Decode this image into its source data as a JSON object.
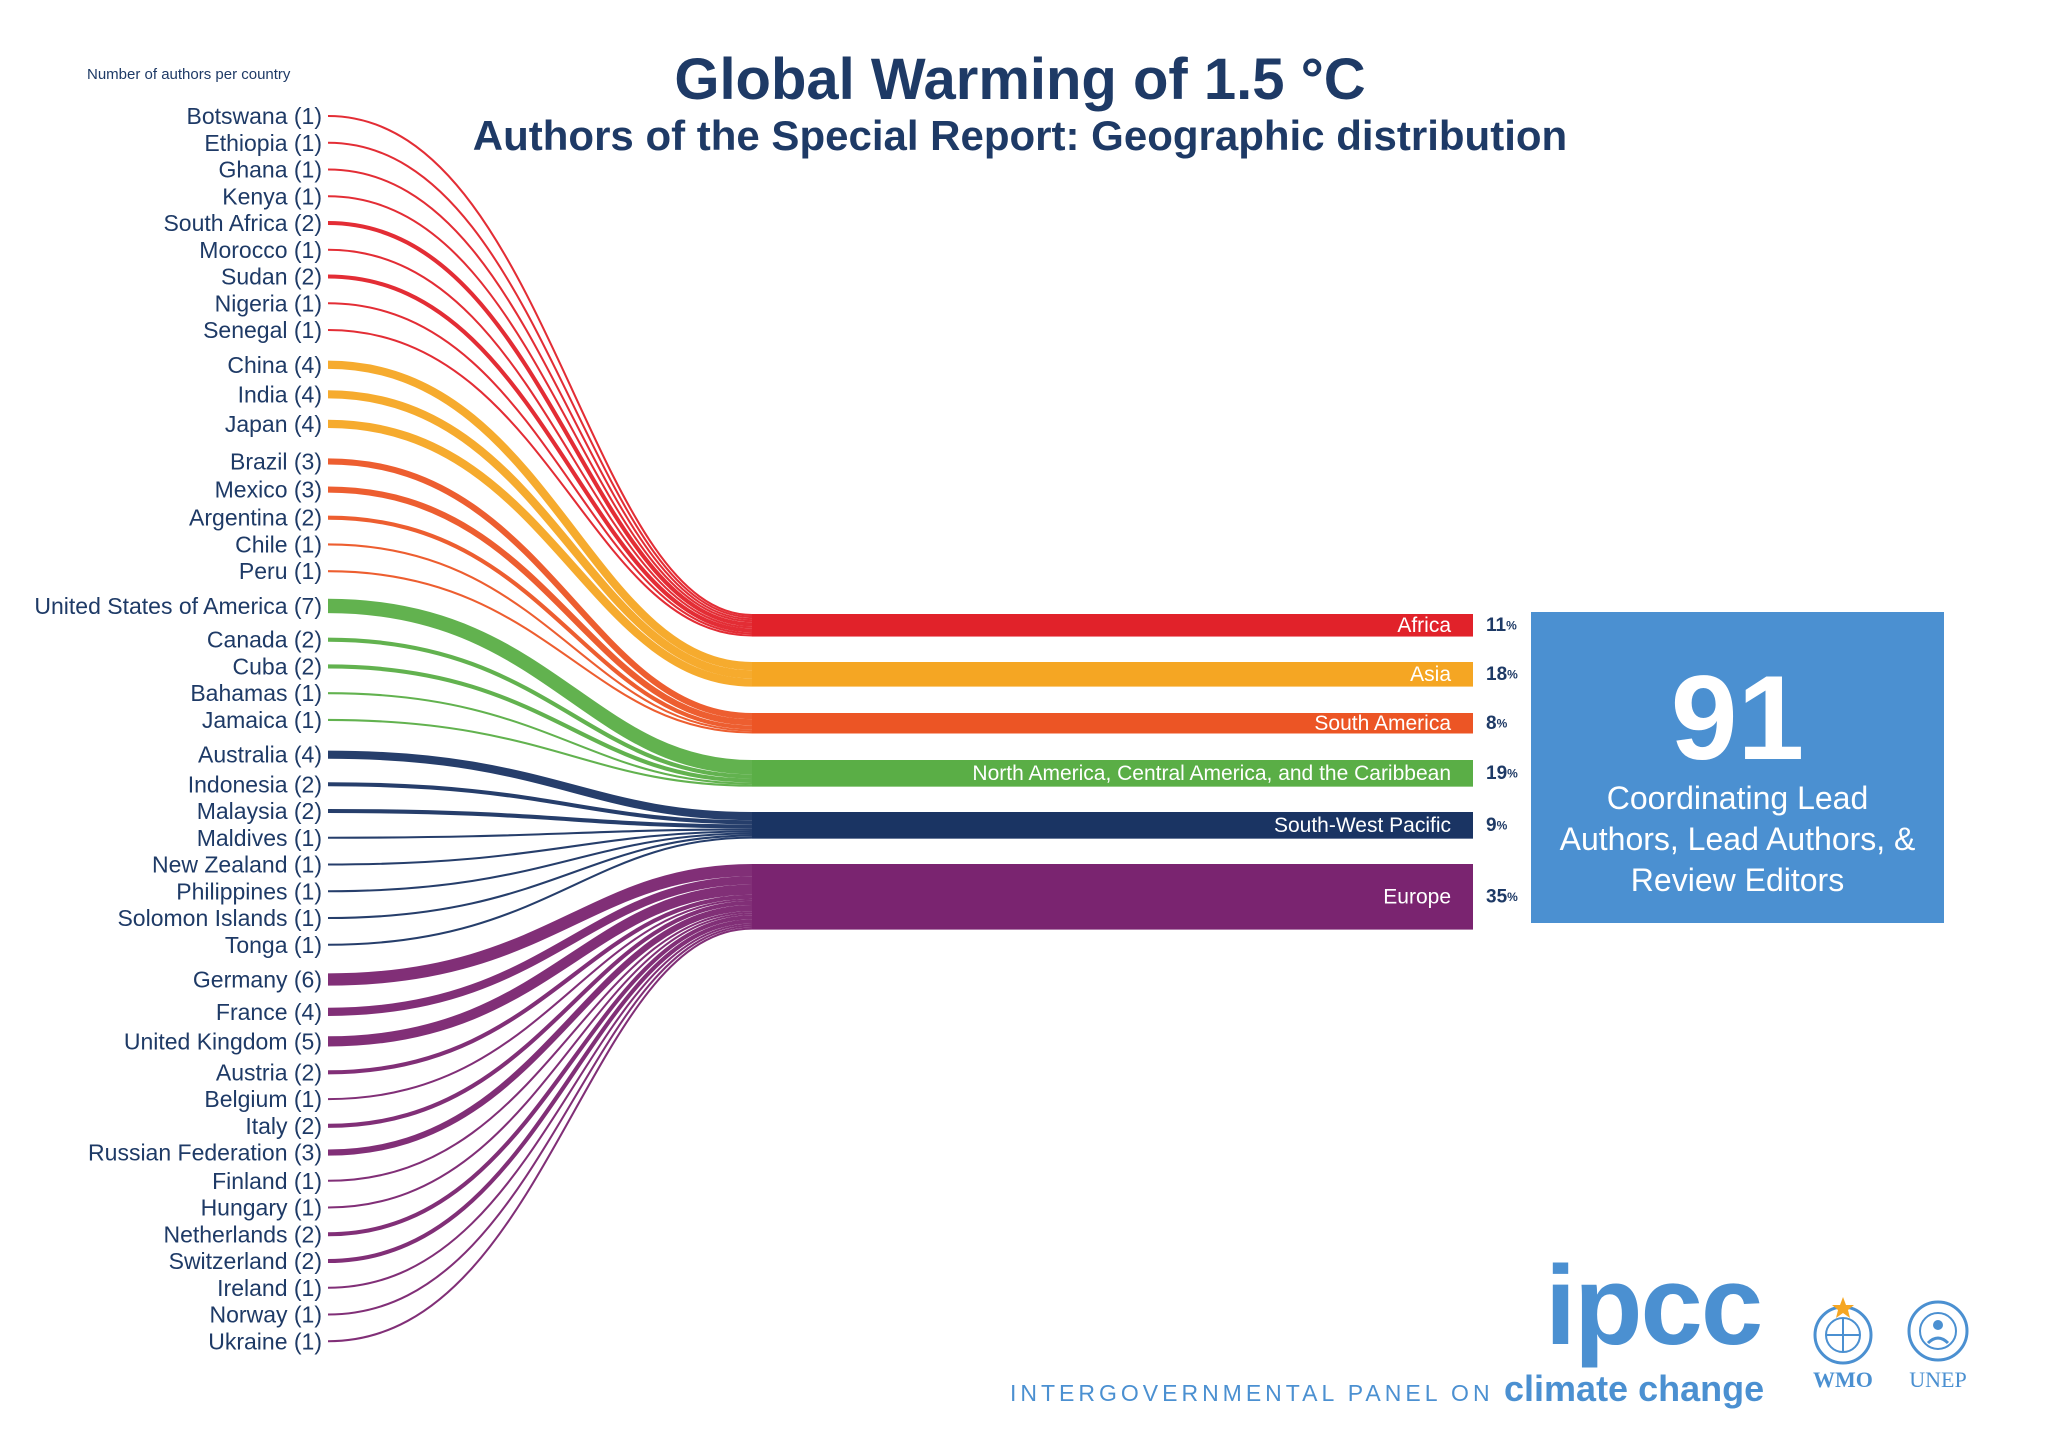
{
  "title": "Global Warming of 1.5 °C",
  "subtitle": "Authors of the Special Report: Geographic distribution",
  "axis_note": "Number of authors per country",
  "total": {
    "number": "91",
    "caption": "Coordinating Lead Authors, Lead Authors, & Review Editors"
  },
  "colors": {
    "Africa": "#e1222a",
    "Asia": "#f5a623",
    "South America": "#ec5525",
    "North America, Central America, and the Caribbean": "#5aae46",
    "South-West Pacific": "#1a3463",
    "Europe": "#7a2470",
    "text": "#1e3a66",
    "accent": "#4b90d1"
  },
  "footer": {
    "logo": "ipcc",
    "tagline_1": "INTERGOVERNMENTAL PANEL ON",
    "tagline_2": "climate change",
    "org_1": "WMO",
    "org_2": "UNEP"
  },
  "chart_data": {
    "type": "sankey",
    "title": "Global Warming of 1.5 °C",
    "subtitle": "Authors of the Special Report: Geographic distribution",
    "source_label": "Number of authors per country",
    "regions": [
      {
        "name": "Africa",
        "percent": 11,
        "label": "11",
        "unit": "%"
      },
      {
        "name": "Asia",
        "percent": 18,
        "label": "18",
        "unit": "%"
      },
      {
        "name": "South America",
        "percent": 8,
        "label": "8",
        "unit": "%"
      },
      {
        "name": "North America, Central America, and the Caribbean",
        "percent": 19,
        "label": "19",
        "unit": "%"
      },
      {
        "name": "South-West Pacific",
        "percent": 9,
        "label": "9",
        "unit": "%"
      },
      {
        "name": "Europe",
        "percent": 35,
        "label": "35",
        "unit": "%"
      }
    ],
    "countries": [
      {
        "name": "Botswana",
        "count": 1,
        "region": "Africa",
        "label": "Botswana (1)"
      },
      {
        "name": "Ethiopia",
        "count": 1,
        "region": "Africa",
        "label": "Ethiopia (1)"
      },
      {
        "name": "Ghana",
        "count": 1,
        "region": "Africa",
        "label": "Ghana (1)"
      },
      {
        "name": "Kenya",
        "count": 1,
        "region": "Africa",
        "label": "Kenya (1)"
      },
      {
        "name": "South Africa",
        "count": 2,
        "region": "Africa",
        "label": "South Africa (2)"
      },
      {
        "name": "Morocco",
        "count": 1,
        "region": "Africa",
        "label": "Morocco (1)"
      },
      {
        "name": "Sudan",
        "count": 2,
        "region": "Africa",
        "label": "Sudan (2)"
      },
      {
        "name": "Nigeria",
        "count": 1,
        "region": "Africa",
        "label": "Nigeria (1)"
      },
      {
        "name": "Senegal",
        "count": 1,
        "region": "Africa",
        "label": "Senegal (1)"
      },
      {
        "name": "China",
        "count": 4,
        "region": "Asia",
        "label": "China (4)"
      },
      {
        "name": "India",
        "count": 4,
        "region": "Asia",
        "label": "India (4)"
      },
      {
        "name": "Japan",
        "count": 4,
        "region": "Asia",
        "label": "Japan (4)"
      },
      {
        "name": "Brazil",
        "count": 3,
        "region": "South America",
        "label": "Brazil (3)"
      },
      {
        "name": "Mexico",
        "count": 3,
        "region": "South America",
        "label": "Mexico (3)"
      },
      {
        "name": "Argentina",
        "count": 2,
        "region": "South America",
        "label": "Argentina (2)"
      },
      {
        "name": "Chile",
        "count": 1,
        "region": "South America",
        "label": "Chile (1)"
      },
      {
        "name": "Peru",
        "count": 1,
        "region": "South America",
        "label": "Peru (1)"
      },
      {
        "name": "United States of America",
        "count": 7,
        "region": "North America, Central America, and the Caribbean",
        "label": "United States of America (7)"
      },
      {
        "name": "Canada",
        "count": 2,
        "region": "North America, Central America, and the Caribbean",
        "label": "Canada (2)"
      },
      {
        "name": "Cuba",
        "count": 2,
        "region": "North America, Central America, and the Caribbean",
        "label": "Cuba (2)"
      },
      {
        "name": "Bahamas",
        "count": 1,
        "region": "North America, Central America, and the Caribbean",
        "label": "Bahamas (1)"
      },
      {
        "name": "Jamaica",
        "count": 1,
        "region": "North America, Central America, and the Caribbean",
        "label": "Jamaica (1)"
      },
      {
        "name": "Australia",
        "count": 4,
        "region": "South-West Pacific",
        "label": "Australia (4)"
      },
      {
        "name": "Indonesia",
        "count": 2,
        "region": "South-West Pacific",
        "label": "Indonesia (2)"
      },
      {
        "name": "Malaysia",
        "count": 2,
        "region": "South-West Pacific",
        "label": "Malaysia (2)"
      },
      {
        "name": "Maldives",
        "count": 1,
        "region": "South-West Pacific",
        "label": "Maldives (1)"
      },
      {
        "name": "New Zealand",
        "count": 1,
        "region": "South-West Pacific",
        "label": "New Zealand (1)"
      },
      {
        "name": "Philippines",
        "count": 1,
        "region": "South-West Pacific",
        "label": "Philippines (1)"
      },
      {
        "name": "Solomon Islands",
        "count": 1,
        "region": "South-West Pacific",
        "label": "Solomon Islands (1)"
      },
      {
        "name": "Tonga",
        "count": 1,
        "region": "South-West Pacific",
        "label": "Tonga (1)"
      },
      {
        "name": "Germany",
        "count": 6,
        "region": "Europe",
        "label": "Germany (6)"
      },
      {
        "name": "France",
        "count": 4,
        "region": "Europe",
        "label": "France (4)"
      },
      {
        "name": "United Kingdom",
        "count": 5,
        "region": "Europe",
        "label": "United Kingdom (5)"
      },
      {
        "name": "Austria",
        "count": 2,
        "region": "Europe",
        "label": "Austria (2)"
      },
      {
        "name": "Belgium",
        "count": 1,
        "region": "Europe",
        "label": "Belgium (1)"
      },
      {
        "name": "Italy",
        "count": 2,
        "region": "Europe",
        "label": "Italy (2)"
      },
      {
        "name": "Russian Federation",
        "count": 3,
        "region": "Europe",
        "label": "Russian Federation (3)"
      },
      {
        "name": "Finland",
        "count": 1,
        "region": "Europe",
        "label": "Finland (1)"
      },
      {
        "name": "Hungary",
        "count": 1,
        "region": "Europe",
        "label": "Hungary (1)"
      },
      {
        "name": "Netherlands",
        "count": 2,
        "region": "Europe",
        "label": "Netherlands (2)"
      },
      {
        "name": "Switzerland",
        "count": 2,
        "region": "Europe",
        "label": "Switzerland (2)"
      },
      {
        "name": "Ireland",
        "count": 1,
        "region": "Europe",
        "label": "Ireland (1)"
      },
      {
        "name": "Norway",
        "count": 1,
        "region": "Europe",
        "label": "Norway (1)"
      },
      {
        "name": "Ukraine",
        "count": 1,
        "region": "Europe",
        "label": "Ukraine (1)"
      }
    ]
  }
}
